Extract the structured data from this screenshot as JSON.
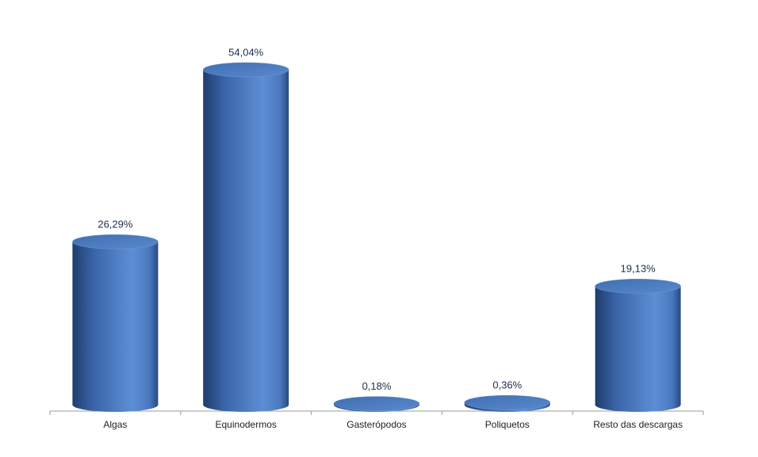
{
  "chart_data": {
    "type": "cylinder",
    "categories": [
      "Algas",
      "Equinodermos",
      "Gasterópodos",
      "Poliquetos",
      "Resto das descargas"
    ],
    "values": [
      26.29,
      54.04,
      0.18,
      0.36,
      19.13
    ],
    "value_labels": [
      "26,29%",
      "54,04%",
      "0,18%",
      "0,36%",
      "19,13%"
    ],
    "color": "#4a7cc0"
  }
}
